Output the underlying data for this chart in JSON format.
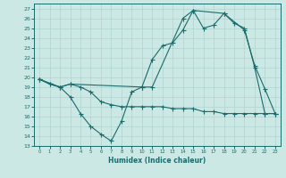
{
  "xlabel": "Humidex (Indice chaleur)",
  "xlim": [
    -0.5,
    23.5
  ],
  "ylim": [
    13,
    27.5
  ],
  "yticks": [
    13,
    14,
    15,
    16,
    17,
    18,
    19,
    20,
    21,
    22,
    23,
    24,
    25,
    26,
    27
  ],
  "xticks": [
    0,
    1,
    2,
    3,
    4,
    5,
    6,
    7,
    8,
    9,
    10,
    11,
    12,
    13,
    14,
    15,
    16,
    17,
    18,
    19,
    20,
    21,
    22,
    23
  ],
  "bg_color": "#cce8e4",
  "line_color": "#1a6b6b",
  "grid_color": "#b0d4d0",
  "line1_x": [
    0,
    1,
    2,
    3,
    10,
    11,
    12,
    13,
    14,
    15,
    16,
    17,
    18,
    20,
    21,
    22,
    23
  ],
  "line1_y": [
    19.8,
    19.3,
    19.0,
    19.3,
    19.0,
    21.8,
    23.2,
    23.5,
    24.8,
    26.8,
    25.0,
    25.3,
    26.5,
    24.8,
    21.2,
    18.8,
    16.3
  ],
  "line2_x": [
    0,
    2,
    3,
    4,
    5,
    6,
    7,
    8,
    9,
    10,
    11,
    14,
    15,
    18,
    19,
    20,
    21,
    22,
    23
  ],
  "line2_y": [
    19.8,
    19.0,
    18.0,
    16.3,
    15.0,
    14.2,
    13.5,
    15.5,
    18.5,
    19.0,
    19.0,
    26.0,
    26.8,
    26.5,
    25.5,
    25.0,
    21.0,
    16.3,
    16.3
  ],
  "line3_x": [
    0,
    1,
    2,
    3,
    4,
    5,
    6,
    7,
    8,
    9,
    10,
    11,
    12,
    13,
    14,
    15,
    16,
    17,
    18,
    19,
    20,
    21,
    22,
    23
  ],
  "line3_y": [
    19.8,
    19.3,
    19.0,
    19.3,
    19.0,
    18.5,
    17.5,
    17.2,
    17.0,
    17.0,
    17.0,
    17.0,
    17.0,
    16.8,
    16.8,
    16.8,
    16.5,
    16.5,
    16.3,
    16.3,
    16.3,
    16.3,
    16.3,
    16.3
  ],
  "ytick_labels": [
    "13",
    "14",
    "15",
    "16",
    "17",
    "18",
    "19",
    "20",
    "21",
    "22",
    "23",
    "24",
    "25",
    "26",
    "27"
  ],
  "xtick_labels": [
    "0",
    "1",
    "2",
    "3",
    "4",
    "5",
    "6",
    "7",
    "8",
    "9",
    "10",
    "11",
    "12",
    "13",
    "14",
    "15",
    "16",
    "17",
    "18",
    "19",
    "20",
    "21",
    "22",
    "23"
  ]
}
